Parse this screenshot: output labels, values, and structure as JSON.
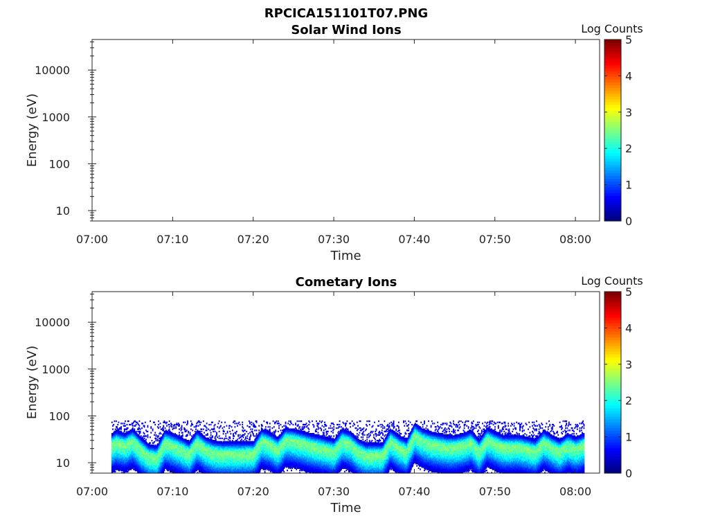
{
  "figure_title": "RPCICA151101T07.PNG",
  "chart_data": [
    {
      "type": "heatmap",
      "title": "Solar Wind Ions",
      "xlabel": "Time",
      "ylabel": "Energy (eV)",
      "x_ticks": [
        "07:00",
        "07:10",
        "07:20",
        "07:30",
        "07:40",
        "07:50",
        "08:00"
      ],
      "xlim": [
        "07:00",
        "08:03"
      ],
      "y_scale": "log",
      "y_ticks": [
        10,
        100,
        1000,
        10000
      ],
      "ylim": [
        6,
        45000
      ],
      "colorbar": {
        "title": "Log Counts",
        "ticks": [
          0,
          1,
          2,
          3,
          4,
          5
        ],
        "range": [
          0,
          5
        ],
        "colormap": "jet"
      },
      "data_present": false,
      "description_of_data": []
    },
    {
      "type": "heatmap",
      "title": "Cometary Ions",
      "xlabel": "Time",
      "ylabel": "Energy (eV)",
      "x_ticks": [
        "07:00",
        "07:10",
        "07:20",
        "07:30",
        "07:40",
        "07:50",
        "08:00"
      ],
      "xlim": [
        "07:00",
        "08:03"
      ],
      "y_scale": "log",
      "y_ticks": [
        10,
        100,
        1000,
        10000
      ],
      "ylim": [
        6,
        45000
      ],
      "colorbar": {
        "title": "Log Counts",
        "ticks": [
          0,
          1,
          2,
          3,
          4,
          5
        ],
        "range": [
          0,
          5
        ],
        "colormap": "jet"
      },
      "data_present": true,
      "data_time_range": [
        "07:02",
        "08:01"
      ],
      "core_energy_track": [
        [
          "07:02",
          22
        ],
        [
          "07:03",
          28
        ],
        [
          "07:04",
          24
        ],
        [
          "07:05",
          30
        ],
        [
          "07:06",
          20
        ],
        [
          "07:07",
          14
        ],
        [
          "07:08",
          13
        ],
        [
          "07:09",
          28
        ],
        [
          "07:10",
          24
        ],
        [
          "07:11",
          20
        ],
        [
          "07:12",
          16
        ],
        [
          "07:13",
          28
        ],
        [
          "07:14",
          20
        ],
        [
          "07:15",
          17
        ],
        [
          "07:16",
          16
        ],
        [
          "07:17",
          16
        ],
        [
          "07:18",
          16
        ],
        [
          "07:19",
          16
        ],
        [
          "07:20",
          16
        ],
        [
          "07:21",
          30
        ],
        [
          "07:22",
          26
        ],
        [
          "07:23",
          20
        ],
        [
          "07:24",
          32
        ],
        [
          "07:25",
          30
        ],
        [
          "07:26",
          27
        ],
        [
          "07:27",
          24
        ],
        [
          "07:28",
          22
        ],
        [
          "07:29",
          20
        ],
        [
          "07:30",
          18
        ],
        [
          "07:31",
          30
        ],
        [
          "07:32",
          26
        ],
        [
          "07:33",
          18
        ],
        [
          "07:34",
          15
        ],
        [
          "07:35",
          15
        ],
        [
          "07:36",
          15
        ],
        [
          "07:37",
          30
        ],
        [
          "07:38",
          22
        ],
        [
          "07:39",
          18
        ],
        [
          "07:40",
          40
        ],
        [
          "07:41",
          30
        ],
        [
          "07:42",
          26
        ],
        [
          "07:43",
          24
        ],
        [
          "07:44",
          22
        ],
        [
          "07:45",
          22
        ],
        [
          "07:46",
          24
        ],
        [
          "07:47",
          28
        ],
        [
          "07:48",
          18
        ],
        [
          "07:49",
          32
        ],
        [
          "07:50",
          26
        ],
        [
          "07:51",
          22
        ],
        [
          "07:52",
          22
        ],
        [
          "07:53",
          22
        ],
        [
          "07:54",
          20
        ],
        [
          "07:55",
          18
        ],
        [
          "07:56",
          28
        ],
        [
          "07:57",
          22
        ],
        [
          "07:58",
          18
        ],
        [
          "07:59",
          24
        ],
        [
          "08:00",
          20
        ],
        [
          "08:01",
          24
        ]
      ],
      "peak_log_counts": 2.8
    }
  ]
}
